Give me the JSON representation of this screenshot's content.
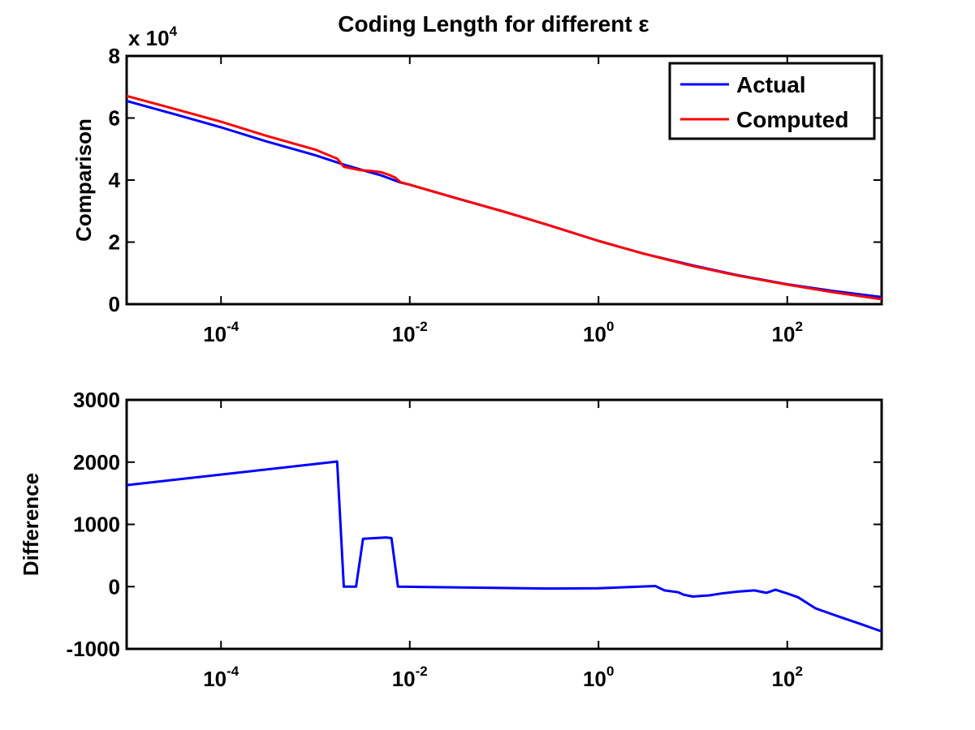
{
  "chart_data": [
    {
      "type": "line",
      "title": "Coding Length for different ε",
      "xlabel": "",
      "ylabel": "Comparison",
      "x_scale": "log",
      "xlim": [
        1e-05,
        1000
      ],
      "ylim": [
        0,
        80000
      ],
      "y_multiplier_label": "x 10",
      "y_multiplier_exp": "4",
      "yticks": [
        0,
        20000,
        40000,
        60000,
        80000
      ],
      "ytick_labels": [
        "0",
        "2",
        "4",
        "6",
        "8"
      ],
      "xticks": [
        0.0001,
        0.01,
        1,
        100
      ],
      "xtick_labels": [
        {
          "base": "10",
          "exp": "-4"
        },
        {
          "base": "10",
          "exp": "-2"
        },
        {
          "base": "10",
          "exp": "0"
        },
        {
          "base": "10",
          "exp": "2"
        }
      ],
      "grid": false,
      "legend_position": "top-right",
      "series": [
        {
          "name": "Actual",
          "color": "#0000ff",
          "x": [
            1e-05,
            3e-05,
            0.0001,
            0.0003,
            0.001,
            0.002,
            0.003,
            0.005,
            0.008,
            0.01,
            0.03,
            0.1,
            0.3,
            1,
            3,
            10,
            30,
            100,
            300,
            1000
          ],
          "y": [
            65500,
            61500,
            57000,
            52500,
            48000,
            45000,
            43400,
            41500,
            39200,
            38500,
            34300,
            29800,
            25400,
            20400,
            16300,
            12500,
            9300,
            6400,
            4300,
            2300
          ]
        },
        {
          "name": "Computed",
          "color": "#ff0000",
          "x": [
            1e-05,
            3e-05,
            0.0001,
            0.0003,
            0.001,
            0.0017,
            0.002,
            0.003,
            0.004,
            0.005,
            0.006,
            0.007,
            0.008,
            0.01,
            0.03,
            0.1,
            0.3,
            1,
            3,
            10,
            30,
            100,
            300,
            1000
          ],
          "y": [
            67100,
            63200,
            58800,
            54300,
            49800,
            46900,
            44300,
            43200,
            42900,
            42500,
            41700,
            40800,
            39300,
            38500,
            34300,
            29800,
            25400,
            20400,
            16300,
            12300,
            9200,
            6300,
            3900,
            1600
          ]
        }
      ]
    },
    {
      "type": "line",
      "title": "",
      "xlabel": "",
      "ylabel": "Difference",
      "x_scale": "log",
      "xlim": [
        1e-05,
        1000
      ],
      "ylim": [
        -1000,
        3000
      ],
      "yticks": [
        -1000,
        0,
        1000,
        2000,
        3000
      ],
      "ytick_labels": [
        "-1000",
        "0",
        "1000",
        "2000",
        "3000"
      ],
      "xticks": [
        0.0001,
        0.01,
        1,
        100
      ],
      "xtick_labels": [
        {
          "base": "10",
          "exp": "-4"
        },
        {
          "base": "10",
          "exp": "-2"
        },
        {
          "base": "10",
          "exp": "0"
        },
        {
          "base": "10",
          "exp": "2"
        }
      ],
      "grid": false,
      "series": [
        {
          "color": "#0000ff",
          "x": [
            1e-05,
            0.0017,
            0.002,
            0.0027,
            0.0032,
            0.0056,
            0.0064,
            0.0075,
            0.3,
            1,
            4,
            5,
            7,
            8,
            10,
            12,
            15,
            20,
            30,
            45,
            60,
            75,
            100,
            130,
            200,
            350,
            600,
            1000
          ],
          "y": [
            1630,
            2010,
            0,
            0,
            770,
            790,
            780,
            0,
            -30,
            -25,
            10,
            -60,
            -90,
            -130,
            -160,
            -150,
            -140,
            -110,
            -80,
            -60,
            -100,
            -50,
            -110,
            -170,
            -350,
            -480,
            -600,
            -720
          ]
        }
      ]
    }
  ]
}
